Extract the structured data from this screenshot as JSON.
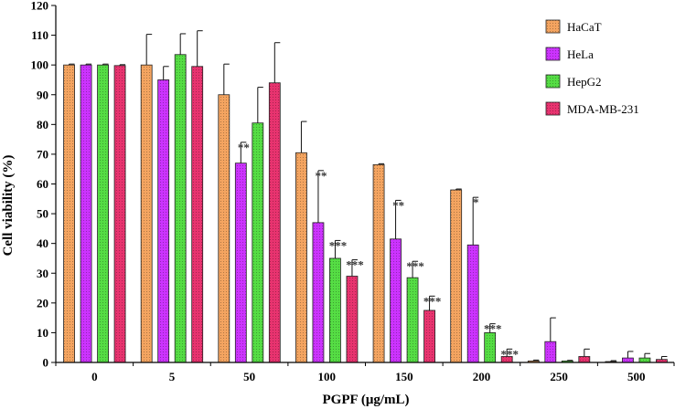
{
  "chart_data": {
    "type": "bar",
    "xlabel": "PGPF (μg/mL)",
    "ylabel": "Cell viability (%)",
    "ylim": [
      0,
      120
    ],
    "yticks": [
      0,
      10,
      20,
      30,
      40,
      50,
      60,
      70,
      80,
      90,
      100,
      110,
      120
    ],
    "categories": [
      "0",
      "5",
      "50",
      "100",
      "150",
      "200",
      "250",
      "500"
    ],
    "legend_position": "top-right",
    "grid": false,
    "series": [
      {
        "name": "HaCaT",
        "color": "#F4A460",
        "values": [
          100,
          100,
          90,
          70.5,
          66.5,
          58,
          0.5,
          0.3
        ],
        "errors": [
          0.3,
          10.3,
          10.3,
          10.5,
          0.3,
          0.3,
          0.3,
          0.3
        ],
        "significance": [
          "",
          "",
          "",
          "",
          "",
          "",
          "",
          ""
        ]
      },
      {
        "name": "HeLa",
        "color": "#CC33FF",
        "values": [
          100,
          95,
          67,
          47,
          41.5,
          39.5,
          7,
          1.5
        ],
        "errors": [
          0.3,
          4.5,
          7,
          17.5,
          13,
          16,
          8,
          2.2
        ],
        "significance": [
          "",
          "",
          "**",
          "**",
          "**",
          "*",
          "",
          ""
        ]
      },
      {
        "name": "HepG2",
        "color": "#55DD44",
        "values": [
          100,
          103.5,
          80.5,
          35,
          28.5,
          10,
          0.5,
          1.5
        ],
        "errors": [
          0.3,
          7,
          12,
          6,
          5.5,
          3,
          0.2,
          1.5
        ],
        "significance": [
          "",
          "",
          "",
          "***",
          "***",
          "***",
          "",
          ""
        ]
      },
      {
        "name": "MDA-MB-231",
        "color": "#E8336F",
        "values": [
          99.8,
          99.5,
          94,
          29,
          17.5,
          2,
          2,
          1
        ],
        "errors": [
          0.3,
          12,
          13.5,
          5.5,
          4.8,
          2.5,
          2.5,
          1
        ],
        "significance": [
          "",
          "",
          "",
          "***",
          "***",
          "***",
          "",
          ""
        ]
      }
    ]
  }
}
